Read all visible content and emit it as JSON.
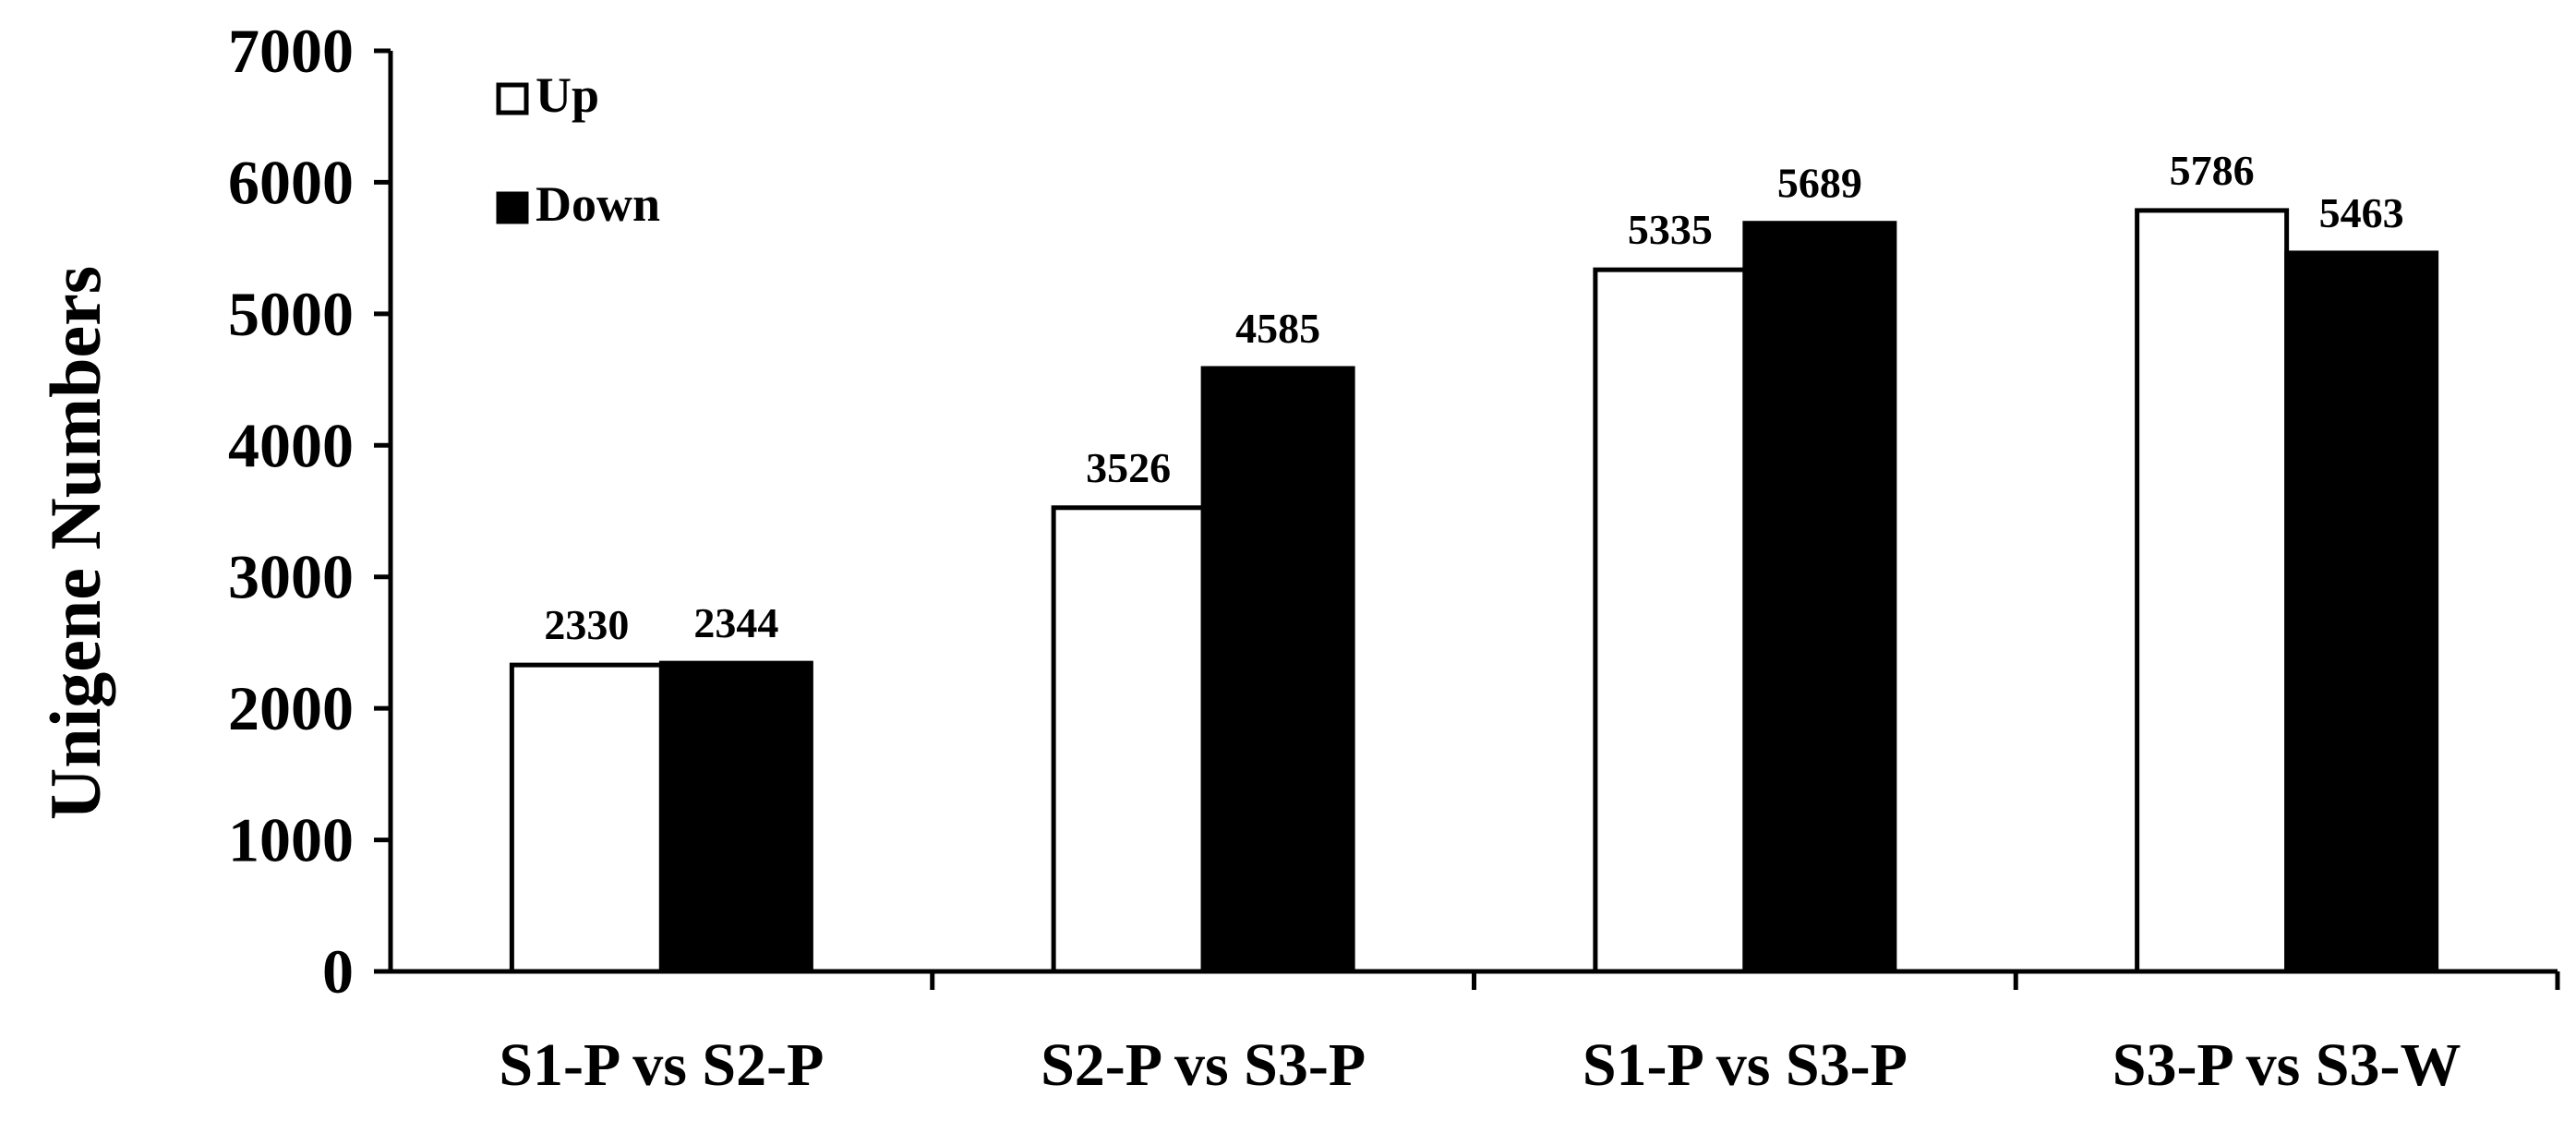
{
  "chart_data": {
    "type": "bar",
    "categories": [
      "S1-P vs S2-P",
      "S2-P vs S3-P",
      "S1-P vs S3-P",
      "S3-P vs S3-W"
    ],
    "series": [
      {
        "name": "Up",
        "values": [
          2330,
          3526,
          5335,
          5786
        ],
        "color": "#ffffff",
        "stroke": "#000000"
      },
      {
        "name": "Down",
        "values": [
          2344,
          4585,
          5689,
          5463
        ],
        "color": "#000000",
        "stroke": "#000000"
      }
    ],
    "data_labels": [
      [
        "2330",
        "3526",
        "5335",
        "5786"
      ],
      [
        "2344",
        "4585",
        "5689",
        "5463"
      ]
    ],
    "title": "",
    "xlabel": "",
    "ylabel": "Unigene Numbers",
    "ylim": [
      0,
      7000
    ],
    "yticks": [
      0,
      1000,
      2000,
      3000,
      4000,
      5000,
      6000,
      7000
    ],
    "ytick_labels": [
      "0",
      "1000",
      "2000",
      "3000",
      "4000",
      "5000",
      "6000",
      "7000"
    ],
    "grid": false,
    "legend": {
      "position": "top-left",
      "entries": [
        "Up",
        "Down"
      ]
    }
  }
}
